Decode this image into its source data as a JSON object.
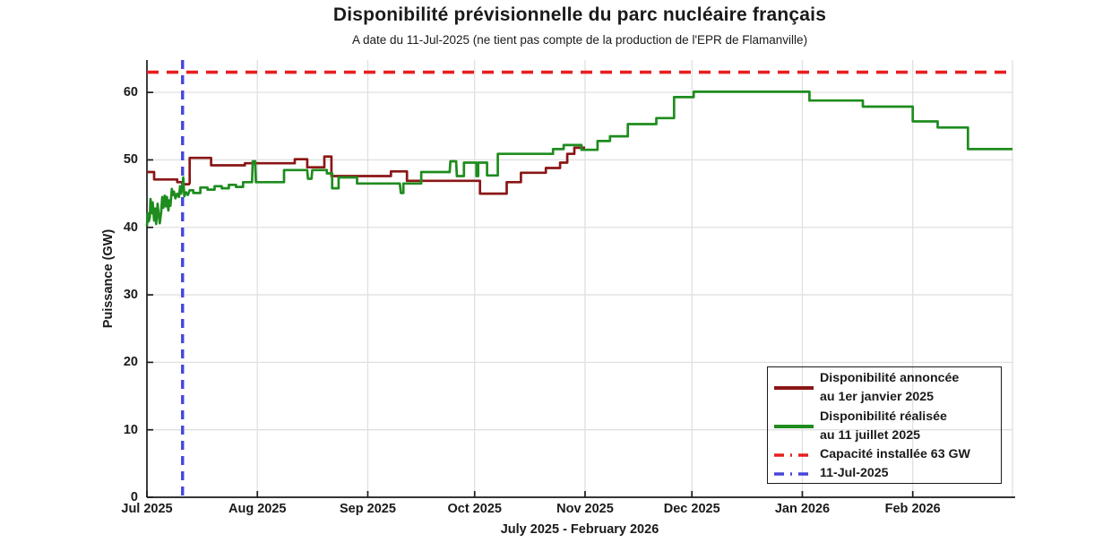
{
  "colors": {
    "announced_line": "#8B1616",
    "realized_line": "#1E8C1E",
    "capacity_line": "#E81F1F",
    "date_line": "#4646DC",
    "grid": "#E0E0E0",
    "axis": "#1A1A1A"
  },
  "chart_data": {
    "type": "line",
    "title": "Disponibilité prévisionnelle du parc nucléaire français",
    "subtitle": "A date du 11-Jul-2025 (ne tient pas compte de la production de l'EPR de Flamanville)",
    "xlabel": "July 2025 - February 2026",
    "ylabel": "Puissance (GW)",
    "x_unit": "days_since_2025-07-01",
    "xlim": [
      0,
      243
    ],
    "ylim": [
      0,
      64.8
    ],
    "grid": true,
    "legend_position": "bottom-right",
    "yticks": [
      0,
      10,
      20,
      30,
      40,
      50,
      60
    ],
    "xticks": [
      {
        "day": 0,
        "label": "Jul 2025"
      },
      {
        "day": 31,
        "label": "Aug 2025"
      },
      {
        "day": 62,
        "label": "Sep 2025"
      },
      {
        "day": 92,
        "label": "Oct 2025"
      },
      {
        "day": 123,
        "label": "Nov 2025"
      },
      {
        "day": 153,
        "label": "Dec 2025"
      },
      {
        "day": 184,
        "label": "Jan 2026"
      },
      {
        "day": 215,
        "label": "Feb 2026"
      }
    ],
    "grid_vertical_days": [
      31,
      62,
      92,
      123,
      153,
      184,
      215,
      243
    ],
    "capacity_installed_gw": 63,
    "reference_date_day": 10,
    "series": [
      {
        "name": "Disponibilité annoncée au 1er janvier 2025",
        "style": "solid",
        "color_key": "announced_line",
        "points": [
          [
            0,
            48.2
          ],
          [
            2,
            48.2
          ],
          [
            2,
            47.1
          ],
          [
            8.5,
            47.1
          ],
          [
            8.5,
            46.7
          ],
          [
            10,
            46.7
          ],
          [
            10.2,
            46.4
          ],
          [
            11.8,
            46.4
          ],
          [
            12,
            46.6
          ],
          [
            12,
            50.3
          ],
          [
            18,
            50.3
          ],
          [
            18,
            49.2
          ],
          [
            27.5,
            49.2
          ],
          [
            27.5,
            49.5
          ],
          [
            41.5,
            49.5
          ],
          [
            41.5,
            50.1
          ],
          [
            45,
            50.1
          ],
          [
            45,
            48.9
          ],
          [
            49.8,
            48.9
          ],
          [
            49.8,
            50.5
          ],
          [
            51.8,
            50.5
          ],
          [
            51.8,
            47.6
          ],
          [
            68.5,
            47.6
          ],
          [
            68.5,
            48.3
          ],
          [
            73,
            48.3
          ],
          [
            73,
            46.9
          ],
          [
            93.5,
            46.9
          ],
          [
            93.5,
            45.0
          ],
          [
            101,
            45.0
          ],
          [
            101,
            46.7
          ],
          [
            105,
            46.7
          ],
          [
            105,
            48.1
          ],
          [
            112,
            48.1
          ],
          [
            112,
            48.8
          ],
          [
            116,
            48.8
          ],
          [
            116,
            49.6
          ],
          [
            118,
            49.6
          ],
          [
            118,
            50.9
          ],
          [
            120,
            50.9
          ],
          [
            120,
            51.8
          ],
          [
            123,
            51.8
          ]
        ]
      },
      {
        "name": "Disponibilité réalisée au 11 juillet 2025",
        "style": "solid",
        "color_key": "realized_line",
        "points": [
          [
            0,
            40.2
          ],
          [
            0.25,
            42.1
          ],
          [
            0.5,
            40.9
          ],
          [
            0.8,
            41.5
          ],
          [
            1,
            44.2
          ],
          [
            1.3,
            42.1
          ],
          [
            1.6,
            43.7
          ],
          [
            2,
            41.0
          ],
          [
            2.3,
            42.8
          ],
          [
            2.6,
            40.5
          ],
          [
            3,
            43.5
          ],
          [
            3.3,
            41.9
          ],
          [
            3.6,
            40.6
          ],
          [
            4,
            42.3
          ],
          [
            4.3,
            44.5
          ],
          [
            4.6,
            42.9
          ],
          [
            5,
            44.7
          ],
          [
            5.3,
            43.1
          ],
          [
            5.6,
            44.5
          ],
          [
            6,
            42.5
          ],
          [
            6.3,
            44.0
          ],
          [
            6.6,
            43.2
          ],
          [
            7,
            45.7
          ],
          [
            7.3,
            44.8
          ],
          [
            7.6,
            45.3
          ],
          [
            8,
            44.3
          ],
          [
            8.5,
            45.0
          ],
          [
            9,
            44.5
          ],
          [
            9.3,
            46.1
          ],
          [
            9.6,
            45.0
          ],
          [
            10,
            46.3
          ],
          [
            10.2,
            47.4
          ],
          [
            10.5,
            44.6
          ],
          [
            11,
            45.2
          ],
          [
            11.5,
            44.8
          ],
          [
            12,
            45.5
          ],
          [
            13,
            45.5
          ],
          [
            13,
            45.1
          ],
          [
            15,
            45.1
          ],
          [
            15,
            45.9
          ],
          [
            17,
            45.9
          ],
          [
            17,
            45.6
          ],
          [
            19,
            45.6
          ],
          [
            19,
            46.1
          ],
          [
            21,
            46.1
          ],
          [
            21,
            45.8
          ],
          [
            23,
            45.8
          ],
          [
            23,
            46.3
          ],
          [
            25,
            46.3
          ],
          [
            25,
            46.0
          ],
          [
            27,
            46.0
          ],
          [
            27,
            46.7
          ],
          [
            29.5,
            46.7
          ],
          [
            29.7,
            49.8
          ],
          [
            30.4,
            49.8
          ],
          [
            30.6,
            46.7
          ],
          [
            38.5,
            46.7
          ],
          [
            38.5,
            48.5
          ],
          [
            45,
            48.5
          ],
          [
            45.2,
            47.2
          ],
          [
            46.2,
            47.2
          ],
          [
            46.4,
            48.5
          ],
          [
            50.5,
            48.5
          ],
          [
            50.5,
            48.0
          ],
          [
            52,
            48.0
          ],
          [
            52,
            45.8
          ],
          [
            53.8,
            45.8
          ],
          [
            53.8,
            47.4
          ],
          [
            59,
            47.4
          ],
          [
            59,
            46.5
          ],
          [
            71,
            46.5
          ],
          [
            71.3,
            45.1
          ],
          [
            72,
            45.1
          ],
          [
            72,
            46.5
          ],
          [
            77,
            46.5
          ],
          [
            77,
            48.2
          ],
          [
            85,
            48.2
          ],
          [
            85.2,
            49.8
          ],
          [
            86.8,
            49.8
          ],
          [
            87,
            47.6
          ],
          [
            89,
            47.6
          ],
          [
            89,
            49.6
          ],
          [
            92.5,
            49.6
          ],
          [
            92.5,
            47.6
          ],
          [
            93,
            47.6
          ],
          [
            93,
            49.6
          ],
          [
            95.5,
            49.6
          ],
          [
            95.5,
            47.7
          ],
          [
            98.5,
            47.7
          ],
          [
            98.5,
            50.9
          ],
          [
            114,
            50.9
          ],
          [
            114,
            51.6
          ],
          [
            117,
            51.6
          ],
          [
            117,
            52.2
          ],
          [
            122,
            52.2
          ],
          [
            122,
            51.5
          ],
          [
            126.5,
            51.5
          ],
          [
            126.5,
            52.8
          ],
          [
            130,
            52.8
          ],
          [
            130,
            53.5
          ],
          [
            135,
            53.5
          ],
          [
            135,
            55.3
          ],
          [
            143,
            55.3
          ],
          [
            143,
            56.2
          ],
          [
            148,
            56.2
          ],
          [
            148,
            59.3
          ],
          [
            153.5,
            59.3
          ],
          [
            153.5,
            60.1
          ],
          [
            186,
            60.1
          ],
          [
            186,
            58.8
          ],
          [
            201,
            58.8
          ],
          [
            201,
            57.9
          ],
          [
            215,
            57.9
          ],
          [
            215,
            55.7
          ],
          [
            222,
            55.7
          ],
          [
            222,
            54.8
          ],
          [
            230.5,
            54.8
          ],
          [
            230.5,
            51.6
          ],
          [
            243,
            51.6
          ]
        ]
      },
      {
        "name": "Capacité installée 63 GW",
        "style": "dashed",
        "color_key": "capacity_line",
        "hline_y": 63
      },
      {
        "name": "11-Jul-2025",
        "style": "dashed",
        "color_key": "date_line",
        "vline_day": 10
      }
    ],
    "legend": {
      "entries": [
        {
          "swatch": "solid",
          "color_key": "announced_line",
          "lines": [
            "Disponibilité annoncée",
            "au 1er janvier 2025"
          ]
        },
        {
          "swatch": "solid",
          "color_key": "realized_line",
          "lines": [
            "Disponibilité réalisée",
            "au 11 juillet 2025"
          ]
        },
        {
          "swatch": "dashed",
          "color_key": "capacity_line",
          "lines": [
            "Capacité installée 63 GW"
          ]
        },
        {
          "swatch": "dashed",
          "color_key": "date_line",
          "lines": [
            "11-Jul-2025"
          ]
        }
      ]
    }
  }
}
